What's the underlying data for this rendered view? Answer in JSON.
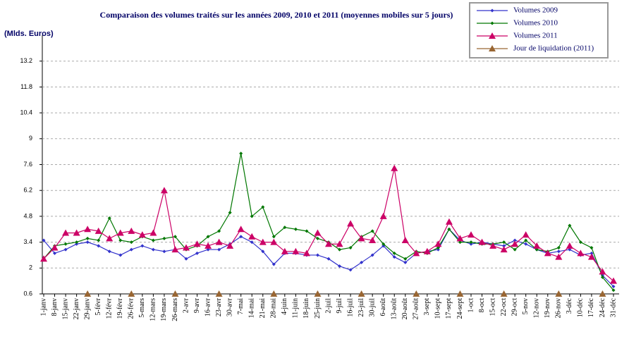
{
  "chart_data": {
    "type": "line",
    "title": "Comparaison des volumes traités sur les années 2009, 2010 et 2011 (moyennes mobiles sur 5 jours)",
    "y_label": "(Mlds. Euros)",
    "categories": [
      "1-janv",
      "8-janv",
      "15-janv",
      "22-janv",
      "29-janv",
      "5-févr",
      "12-févr",
      "19-févr",
      "26-févr",
      "5-mars",
      "12-mars",
      "19-mars",
      "26-mars",
      "2-avr",
      "9-avr",
      "16-avr",
      "23-avr",
      "30-avr",
      "7-mai",
      "14-mai",
      "21-mai",
      "28-mai",
      "4-juin",
      "11-juin",
      "18-juin",
      "25-juin",
      "2-juil",
      "9-juil",
      "16-juil",
      "23-juil",
      "30-juil",
      "6-août",
      "13-août",
      "20-août",
      "27-août",
      "3-sept",
      "10-sept",
      "17-sept",
      "24-sept",
      "1-oct",
      "8-oct",
      "15-oct",
      "22-oct",
      "29-oct",
      "5-nov",
      "12-nov",
      "19-nov",
      "26-nov",
      "3-déc",
      "10-déc",
      "17-déc",
      "24-déc",
      "31-déc"
    ],
    "series": [
      {
        "name": "Volumes 2009",
        "color": "#3333cc",
        "marker": "diamond",
        "line": true,
        "values": [
          3.5,
          2.8,
          3.0,
          3.3,
          3.4,
          3.2,
          2.9,
          2.7,
          3.0,
          3.2,
          3.0,
          2.9,
          3.0,
          2.5,
          2.8,
          3.0,
          3.0,
          3.3,
          3.7,
          3.4,
          2.9,
          2.2,
          2.8,
          2.8,
          2.7,
          2.7,
          2.5,
          2.1,
          1.9,
          2.3,
          2.7,
          3.2,
          2.6,
          2.3,
          2.8,
          2.9,
          3.0,
          4.1,
          3.5,
          3.3,
          3.4,
          3.3,
          3.2,
          3.5,
          3.3,
          3.0,
          2.8,
          2.9,
          3.0,
          2.7,
          2.8,
          1.6,
          1.0
        ]
      },
      {
        "name": "Volumes 2010",
        "color": "#007700",
        "marker": "diamond",
        "line": true,
        "values": [
          2.5,
          3.2,
          3.3,
          3.4,
          3.6,
          3.5,
          4.7,
          3.5,
          3.4,
          3.7,
          3.5,
          3.6,
          3.7,
          3.0,
          3.2,
          3.7,
          4.0,
          5.0,
          8.2,
          4.8,
          5.3,
          3.7,
          4.2,
          4.1,
          4.0,
          3.6,
          3.4,
          3.0,
          3.1,
          3.7,
          4.0,
          3.3,
          2.8,
          2.5,
          2.9,
          2.8,
          3.1,
          4.1,
          3.4,
          3.4,
          3.3,
          3.3,
          3.4,
          3.0,
          3.5,
          3.0,
          2.9,
          3.1,
          4.3,
          3.4,
          3.1,
          1.5,
          0.8
        ]
      },
      {
        "name": "Volumes 2011",
        "color": "#cc0066",
        "marker": "triangle",
        "line": true,
        "values": [
          2.5,
          3.1,
          3.9,
          3.9,
          4.1,
          4.0,
          3.6,
          3.9,
          4.0,
          3.8,
          3.9,
          6.2,
          3.0,
          3.1,
          3.3,
          3.2,
          3.4,
          3.2,
          4.1,
          3.7,
          3.4,
          3.4,
          2.9,
          2.9,
          2.8,
          3.9,
          3.3,
          3.3,
          4.4,
          3.6,
          3.5,
          4.8,
          7.4,
          3.5,
          2.8,
          2.9,
          3.3,
          4.5,
          3.6,
          3.8,
          3.4,
          3.2,
          3.0,
          3.3,
          3.8,
          3.2,
          2.8,
          2.6,
          3.2,
          2.8,
          2.6,
          1.8,
          1.3
        ]
      },
      {
        "name": "Jour de liquidation (2011)",
        "color": "#996633",
        "marker": "triangle",
        "line": false,
        "values": [
          null,
          null,
          null,
          null,
          0.6,
          null,
          null,
          null,
          0.6,
          null,
          null,
          null,
          0.6,
          null,
          null,
          null,
          0.6,
          null,
          null,
          null,
          null,
          0.6,
          null,
          null,
          null,
          0.6,
          null,
          null,
          null,
          0.6,
          null,
          null,
          null,
          null,
          0.6,
          null,
          null,
          null,
          0.6,
          null,
          null,
          null,
          0.6,
          null,
          null,
          null,
          null,
          0.6,
          null,
          null,
          null,
          0.6,
          null
        ]
      }
    ],
    "ylim": [
      0.6,
      14.6
    ],
    "yticks": [
      0.6,
      2,
      3.4,
      4.8,
      6.2,
      7.6,
      9,
      10.4,
      11.8,
      13.2
    ],
    "grid": true,
    "legend": "top-right"
  }
}
